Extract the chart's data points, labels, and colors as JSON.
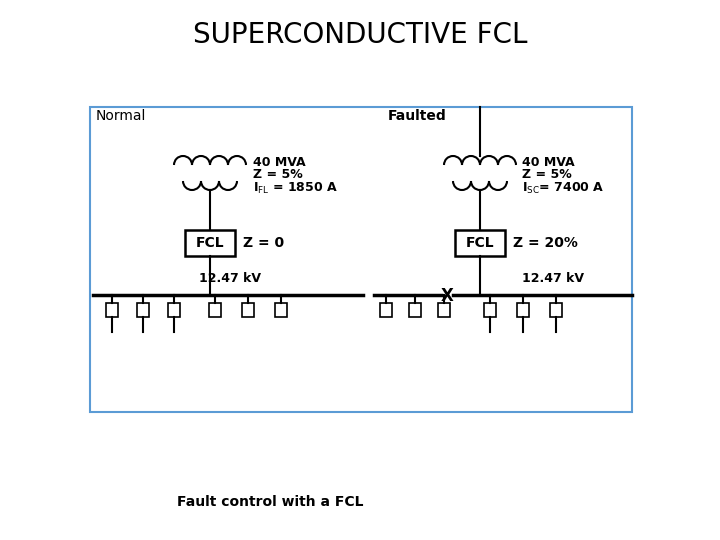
{
  "title": "SUPERCONDUCTIVE FCL",
  "subtitle": "Fault control with a FCL",
  "normal_label": "Normal",
  "faulted_label": "Faulted",
  "normal_specs_line1": "40 MVA",
  "normal_specs_line2": "Z = 5%",
  "normal_specs_line3": "I_{FL} = 1850 A",
  "faulted_specs_line1": "40 MVA",
  "faulted_specs_line2": "Z = 5%",
  "faulted_specs_line3": "I_{SC}= 7400 A",
  "normal_fcl": "FCL",
  "normal_z": "Z = 0",
  "faulted_fcl": "FCL",
  "faulted_z": "Z = 20%",
  "voltage": "12.47 kV",
  "bg_color": "#ffffff",
  "border_color": "#5b9bd5",
  "line_color": "#000000",
  "title_fontsize": 20,
  "label_fontsize": 10,
  "spec_fontsize": 9,
  "subtitle_fontsize": 10
}
